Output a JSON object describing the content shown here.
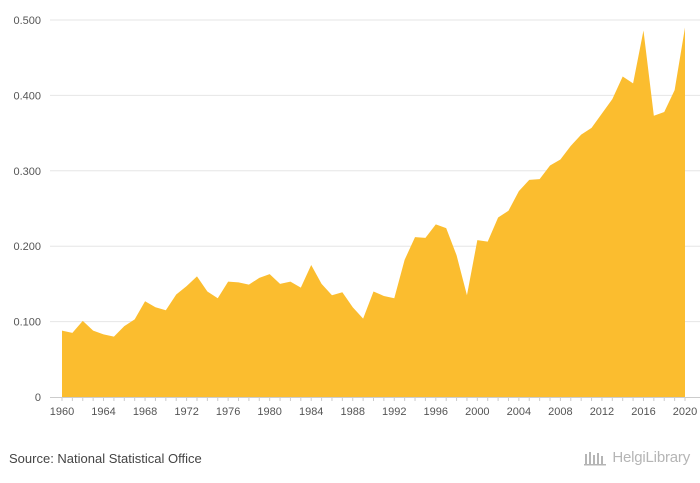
{
  "chart_data": {
    "type": "area",
    "x": [
      1960,
      1961,
      1962,
      1963,
      1964,
      1965,
      1966,
      1967,
      1968,
      1969,
      1970,
      1971,
      1972,
      1973,
      1974,
      1975,
      1976,
      1977,
      1978,
      1979,
      1980,
      1981,
      1982,
      1983,
      1984,
      1985,
      1986,
      1987,
      1988,
      1989,
      1990,
      1991,
      1992,
      1993,
      1994,
      1995,
      1996,
      1997,
      1998,
      1999,
      2000,
      2001,
      2002,
      2003,
      2004,
      2005,
      2006,
      2007,
      2008,
      2009,
      2010,
      2011,
      2012,
      2013,
      2014,
      2015,
      2016,
      2017,
      2018,
      2019,
      2020
    ],
    "values": [
      0.088,
      0.085,
      0.101,
      0.088,
      0.083,
      0.08,
      0.094,
      0.103,
      0.127,
      0.119,
      0.115,
      0.136,
      0.147,
      0.16,
      0.14,
      0.131,
      0.153,
      0.152,
      0.149,
      0.158,
      0.163,
      0.15,
      0.153,
      0.145,
      0.175,
      0.15,
      0.135,
      0.139,
      0.119,
      0.104,
      0.14,
      0.134,
      0.131,
      0.182,
      0.212,
      0.211,
      0.229,
      0.224,
      0.188,
      0.135,
      0.208,
      0.206,
      0.238,
      0.247,
      0.273,
      0.288,
      0.289,
      0.307,
      0.315,
      0.333,
      0.348,
      0.357,
      0.376,
      0.395,
      0.425,
      0.416,
      0.486,
      0.373,
      0.378,
      0.407,
      0.49
    ],
    "x_ticks": [
      "1960",
      "1964",
      "1968",
      "1972",
      "1976",
      "1980",
      "1984",
      "1988",
      "1992",
      "1996",
      "2000",
      "2004",
      "2008",
      "2012",
      "2016",
      "2020"
    ],
    "y_ticks": [
      "0",
      "0.100",
      "0.200",
      "0.300",
      "0.400",
      "0.500"
    ],
    "ylim": [
      0,
      0.5
    ],
    "xlim": [
      1960,
      2020
    ],
    "grid": true,
    "fill_color": "#fbbd2f",
    "title": "",
    "xlabel": "",
    "ylabel": ""
  },
  "footer": {
    "source": "Source: National Statistical Office",
    "brand": "HelgiLibrary"
  }
}
